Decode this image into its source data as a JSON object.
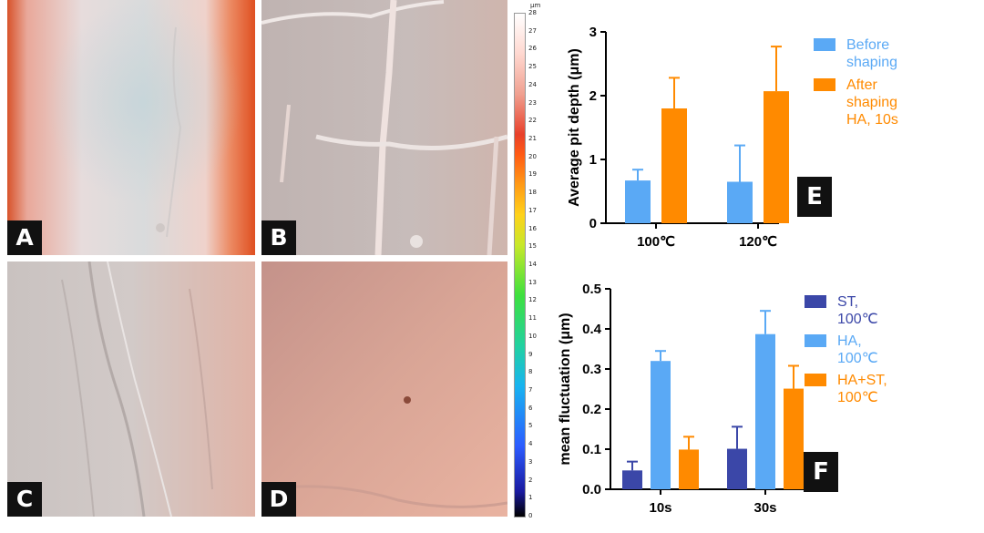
{
  "panels": [
    {
      "label": "A"
    },
    {
      "label": "B"
    },
    {
      "label": "C"
    },
    {
      "label": "D"
    }
  ],
  "colorbar": {
    "unit": "μm",
    "ticks": [
      "28",
      "27",
      "26",
      "25",
      "24",
      "23",
      "22",
      "21",
      "20",
      "19",
      "18",
      "17",
      "16",
      "15",
      "14",
      "13",
      "12",
      "11",
      "10",
      "9",
      "8",
      "7",
      "6",
      "5",
      "4",
      "3",
      "2",
      "1",
      "0"
    ],
    "range": [
      0,
      28
    ]
  },
  "colors": {
    "before": "#5aa9f5",
    "after": "#ff8a00",
    "st": "#3b47a8",
    "ha": "#5aa9f5",
    "hast": "#ff8a00",
    "surface_warm": "#e9623a",
    "surface_grey": "#c9c2c0"
  },
  "chart_data": [
    {
      "type": "bar",
      "panel_label": "E",
      "ylabel": "Average pit depth (μm)",
      "categories": [
        "100℃",
        "120℃"
      ],
      "ylim": [
        0,
        3
      ],
      "yticks": [
        "0",
        "1",
        "2",
        "3"
      ],
      "series": [
        {
          "name": "Before shaping",
          "values": [
            0.67,
            0.65
          ],
          "errors": [
            0.17,
            0.57
          ],
          "color": "#5aa9f5"
        },
        {
          "name": "After shaping HA, 10s",
          "values": [
            1.8,
            2.07
          ],
          "errors": [
            0.48,
            0.7
          ],
          "color": "#ff8a00"
        }
      ],
      "legend": [
        {
          "lines": [
            "Before",
            "shaping"
          ],
          "color": "#5aa9f5"
        },
        {
          "lines": [
            "After",
            "shaping",
            "HA, 10s"
          ],
          "color": "#ff8a00"
        }
      ],
      "legend_position": "right"
    },
    {
      "type": "bar",
      "panel_label": "F",
      "ylabel": "mean fluctuation (μm)",
      "categories": [
        "10s",
        "30s"
      ],
      "ylim": [
        0,
        0.5
      ],
      "yticks": [
        "0.0",
        "0.1",
        "0.2",
        "0.3",
        "0.4",
        "0.5"
      ],
      "series": [
        {
          "name": "ST, 100℃",
          "values": [
            0.047,
            0.101
          ],
          "errors": [
            0.022,
            0.055
          ],
          "color": "#3b47a8"
        },
        {
          "name": "HA, 100℃",
          "values": [
            0.32,
            0.387
          ],
          "errors": [
            0.025,
            0.058
          ],
          "color": "#5aa9f5"
        },
        {
          "name": "HA+ST, 100℃",
          "values": [
            0.099,
            0.251
          ],
          "errors": [
            0.032,
            0.057
          ],
          "color": "#ff8a00"
        }
      ],
      "legend": [
        {
          "lines": [
            "ST,",
            "100℃"
          ],
          "color": "#3b47a8"
        },
        {
          "lines": [
            "HA,",
            "100℃"
          ],
          "color": "#5aa9f5"
        },
        {
          "lines": [
            "HA+ST,",
            "100℃"
          ],
          "color": "#ff8a00"
        }
      ],
      "legend_position": "right"
    }
  ]
}
